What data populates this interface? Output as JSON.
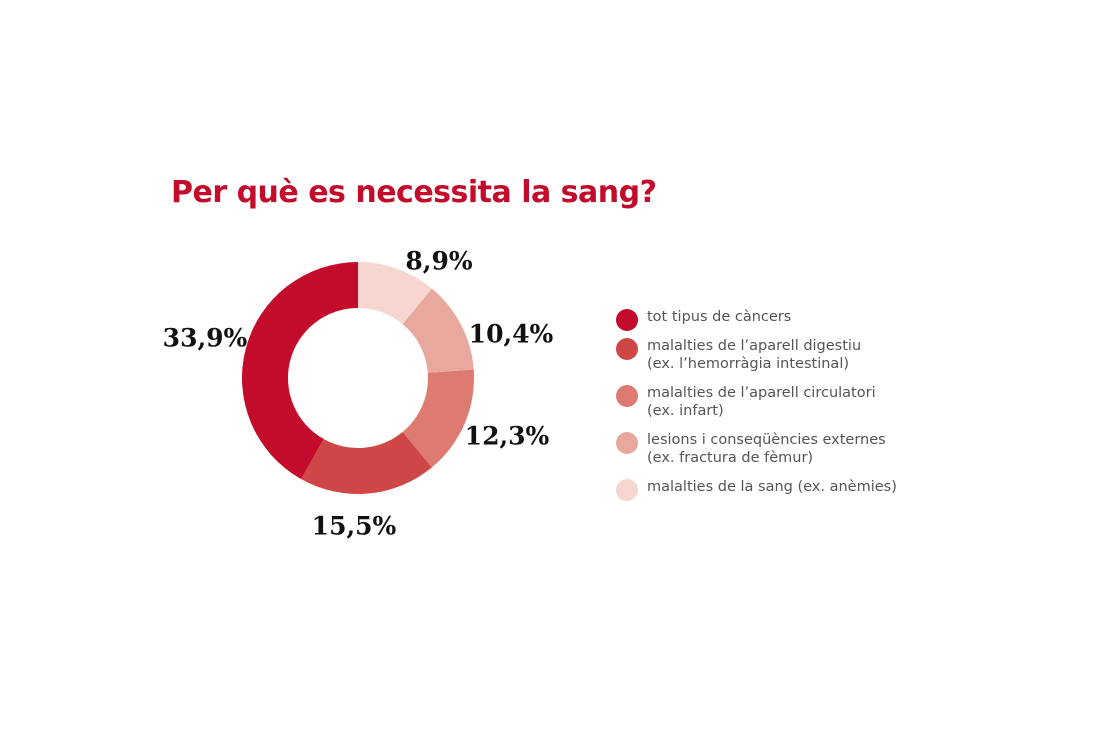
{
  "chart_data": {
    "type": "pie",
    "title": "Per què es necessita la sang?",
    "donut": true,
    "legend_position": "right",
    "slices": [
      {
        "label_lines": [
          "tot tipus de càncers"
        ],
        "value": 33.9,
        "display": "33,9%",
        "color": "#c30b2b"
      },
      {
        "label_lines": [
          "malalties de l’aparell digestiu",
          "(ex. l’hemorràgia intestinal)"
        ],
        "value": 15.5,
        "display": "15,5%",
        "color": "#cf4646"
      },
      {
        "label_lines": [
          "malalties de l’aparell circulatori",
          "(ex. infart)"
        ],
        "value": 12.3,
        "display": "12,3%",
        "color": "#de7b70"
      },
      {
        "label_lines": [
          "lesions i conseqüències externes",
          "(ex. fractura de fèmur)"
        ],
        "value": 10.4,
        "display": "10,4%",
        "color": "#e9a89d"
      },
      {
        "label_lines": [
          "malalties de la sang (ex. anèmies)"
        ],
        "value": 8.9,
        "display": "8,9%",
        "color": "#f6d6cf"
      }
    ]
  }
}
